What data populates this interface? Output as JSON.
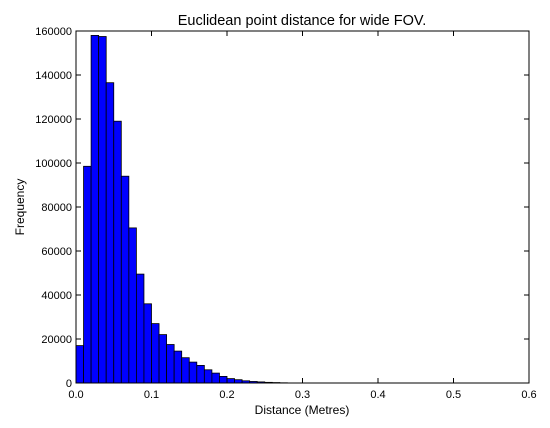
{
  "chart_data": {
    "type": "bar",
    "title": "Euclidean point distance for wide FOV.",
    "xlabel": "Distance (Metres)",
    "ylabel": "Frequency",
    "xlim": [
      0.0,
      0.6
    ],
    "ylim": [
      0,
      160000
    ],
    "x_ticks": [
      "0.0",
      "0.1",
      "0.2",
      "0.3",
      "0.4",
      "0.5",
      "0.6"
    ],
    "y_ticks": [
      "0",
      "20000",
      "40000",
      "60000",
      "80000",
      "100000",
      "120000",
      "140000",
      "160000"
    ],
    "bin_width": 0.01,
    "bin_starts": [
      0.0,
      0.01,
      0.02,
      0.03,
      0.04,
      0.05,
      0.06,
      0.07,
      0.08,
      0.09,
      0.1,
      0.11,
      0.12,
      0.13,
      0.14,
      0.15,
      0.16,
      0.17,
      0.18,
      0.19,
      0.2,
      0.21,
      0.22,
      0.23,
      0.24,
      0.25,
      0.26,
      0.27
    ],
    "values": [
      17000,
      98500,
      158000,
      157500,
      136500,
      119000,
      94000,
      70500,
      49500,
      36000,
      27000,
      22000,
      17500,
      14500,
      11500,
      9500,
      8000,
      6000,
      4500,
      3000,
      2000,
      1500,
      1000,
      700,
      500,
      300,
      200,
      100
    ],
    "bar_color": "#0000ff",
    "edge_color": "#000000",
    "grid": false,
    "legend": "none"
  }
}
